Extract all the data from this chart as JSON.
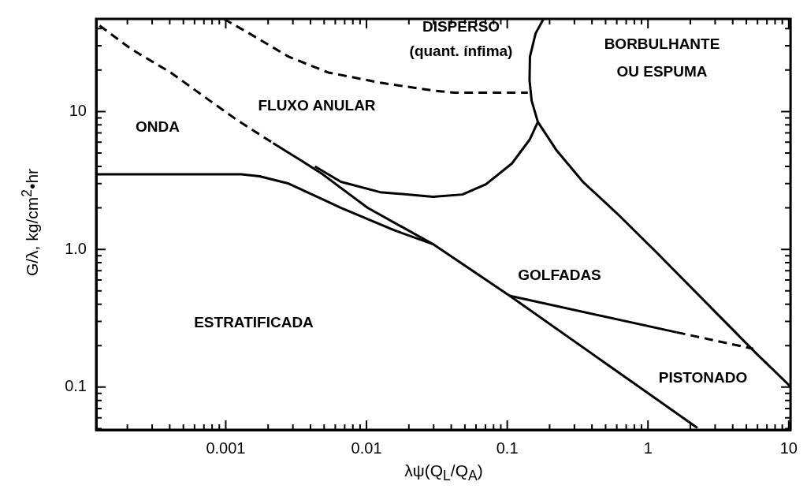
{
  "chart_data": {
    "type": "line",
    "xlabel": "λψ(Q$_{L}$/Q$_{A}$)",
    "ylabel": "G/λ, kg/cm$^{2}$•hr",
    "log": "xy",
    "grid": false,
    "legend": false,
    "marker": "none",
    "xlim": [
      0.00012,
      10.3
    ],
    "ylim": [
      0.049,
      47
    ],
    "xticks": [
      {
        "value": 0.0002,
        "label": null
      },
      {
        "value": 0.0003,
        "label": null
      },
      {
        "value": 0.0004,
        "label": null
      },
      {
        "value": 0.0005,
        "label": null
      },
      {
        "value": 0.0006,
        "label": null
      },
      {
        "value": 0.0007,
        "label": null
      },
      {
        "value": 0.0008,
        "label": null
      },
      {
        "value": 0.0009,
        "label": null
      },
      0.001,
      {
        "value": 0.002,
        "label": null
      },
      {
        "value": 0.003,
        "label": null
      },
      {
        "value": 0.004,
        "label": null
      },
      {
        "value": 0.005,
        "label": null
      },
      {
        "value": 0.006,
        "label": null
      },
      {
        "value": 0.007,
        "label": null
      },
      {
        "value": 0.008,
        "label": null
      },
      {
        "value": 0.009,
        "label": null
      },
      0.01,
      {
        "value": 0.02,
        "label": null
      },
      {
        "value": 0.03,
        "label": null
      },
      {
        "value": 0.04,
        "label": null
      },
      {
        "value": 0.05,
        "label": null
      },
      {
        "value": 0.06,
        "label": null
      },
      {
        "value": 0.07,
        "label": null
      },
      {
        "value": 0.08,
        "label": null
      },
      {
        "value": 0.09,
        "label": null
      },
      0.1,
      {
        "value": 0.2,
        "label": null
      },
      {
        "value": 0.3,
        "label": null
      },
      {
        "value": 0.4,
        "label": null
      },
      {
        "value": 0.5,
        "label": null
      },
      {
        "value": 0.6,
        "label": null
      },
      {
        "value": 0.7,
        "label": null
      },
      {
        "value": 0.8,
        "label": null
      },
      {
        "value": 0.9,
        "label": null
      },
      1,
      {
        "value": 2,
        "label": null
      },
      {
        "value": 3,
        "label": null
      },
      {
        "value": 4,
        "label": null
      },
      {
        "value": 5,
        "label": null
      },
      {
        "value": 6,
        "label": null
      },
      {
        "value": 7,
        "label": null
      },
      {
        "value": 8,
        "label": null
      },
      {
        "value": 9,
        "label": null
      },
      10
    ],
    "yticks": [
      {
        "value": 0.05,
        "label": null
      },
      {
        "value": 0.06,
        "label": null
      },
      {
        "value": 0.07,
        "label": null
      },
      {
        "value": 0.08,
        "label": null
      },
      {
        "value": 0.09,
        "label": null
      },
      0.1,
      {
        "value": 0.2,
        "label": null
      },
      {
        "value": 0.3,
        "label": null
      },
      {
        "value": 0.4,
        "label": null
      },
      {
        "value": 0.5,
        "label": null
      },
      {
        "value": 0.6,
        "label": null
      },
      {
        "value": 0.7,
        "label": null
      },
      {
        "value": 0.8,
        "label": null
      },
      {
        "value": 0.9,
        "label": null
      },
      {
        "value": 1,
        "label": "1.0"
      },
      {
        "value": 2,
        "label": null
      },
      {
        "value": 3,
        "label": null
      },
      {
        "value": 4,
        "label": null
      },
      {
        "value": 5,
        "label": null
      },
      {
        "value": 6,
        "label": null
      },
      {
        "value": 7,
        "label": null
      },
      {
        "value": 8,
        "label": null
      },
      {
        "value": 9,
        "label": null
      },
      10,
      {
        "value": 20,
        "label": null
      },
      {
        "value": 30,
        "label": null
      },
      {
        "value": 40,
        "label": null
      }
    ],
    "series": [
      {
        "color": "#000000",
        "line_style": "dashed",
        "x": [
          0.000127,
          0.000213,
          0.000406,
          0.00077,
          0.00118,
          0.00217
        ],
        "values": [
          42,
          28.4,
          19.2,
          12,
          8.8,
          5.9
        ]
      },
      {
        "color": "#000000",
        "line_style": "solid",
        "x": [
          0.00217,
          0.00345,
          0.00489,
          0.0102,
          0.0297,
          0.104,
          2.24
        ],
        "values": [
          5.9,
          4.4,
          3.5,
          2,
          1.09,
          0.46,
          0.0507
        ]
      },
      {
        "color": "#000000",
        "line_style": "solid",
        "x": [
          0.0043,
          0.00658,
          0.0125,
          0.0297,
          0.048,
          0.0706,
          0.108,
          0.145,
          0.165
        ],
        "values": [
          4,
          3.09,
          2.6,
          2.41,
          2.5,
          2.97,
          4.2,
          6.3,
          8.4
        ]
      },
      {
        "color": "#000000",
        "line_style": "solid",
        "x": [
          0.00012,
          0.00129,
          0.00174,
          0.0028,
          0.0066,
          0.0156,
          0.0297
        ],
        "values": [
          3.5,
          3.5,
          3.39,
          3,
          2,
          1.38,
          1.09
        ]
      },
      {
        "color": "#000000",
        "line_style": "dashed",
        "x": [
          0.00097,
          0.00147,
          0.0028,
          0.00535,
          0.0125,
          0.0297,
          0.042,
          0.14
        ],
        "values": [
          47,
          36.9,
          25,
          19.2,
          16.2,
          14.2,
          13.7,
          13.7
        ]
      },
      {
        "color": "#000000",
        "line_style": "solid",
        "x": [
          0.181,
          0.159,
          0.145,
          0.144,
          0.149,
          0.165,
          0.225,
          0.345,
          0.6,
          1.15,
          2.72,
          5.9,
          10.3
        ],
        "values": [
          47,
          36.9,
          25,
          16.9,
          12,
          8.4,
          5.2,
          3.09,
          1.83,
          0.95,
          0.39,
          0.175,
          0.101
        ]
      },
      {
        "color": "#000000",
        "line_style": "solid",
        "x": [
          0.104,
          1.6
        ],
        "values": [
          0.46,
          0.25
        ]
      },
      {
        "color": "#000000",
        "line_style": "dashed",
        "x": [
          1.6,
          5.6
        ],
        "values": [
          0.25,
          0.19
        ]
      }
    ],
    "annotations": [
      "DISPERSO",
      "(quant. ínfima)",
      "BORBULHANTE",
      "OU ESPUMA",
      "FLUXO ANULAR",
      "ONDA",
      "GOLFADAS",
      "ESTRATIFICADA",
      "PISTONADO"
    ]
  }
}
